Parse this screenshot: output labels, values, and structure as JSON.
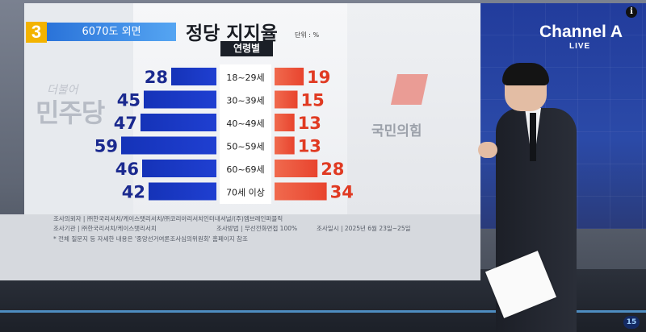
{
  "broadcast": {
    "segment_number": "3",
    "segment_label": "6070도 외면",
    "logo": "Channel A",
    "logo_sub": "LIVE",
    "info_icon": "info-icon",
    "corner_badge": "15"
  },
  "parties": {
    "left_name": "민주당",
    "left_prefix": "더불어",
    "right_name": "국민의힘",
    "left_color": "#1f3fd1",
    "right_color": "#e8442e"
  },
  "chart_data": {
    "type": "bar",
    "title": "정당 지지율",
    "unit": "단위 : %",
    "subtitle": "연령별",
    "categories": [
      "18~29세",
      "30~39세",
      "40~49세",
      "50~59세",
      "60~69세",
      "70세 이상"
    ],
    "series": [
      {
        "name": "더불어민주당",
        "values": [
          28,
          45,
          47,
          59,
          46,
          42
        ],
        "color": "#1f3fd1"
      },
      {
        "name": "국민의힘",
        "values": [
          19,
          15,
          13,
          13,
          28,
          34
        ],
        "color": "#e8442e"
      }
    ]
  },
  "source": {
    "line1": "조사의뢰자  |  ㈜한국리서치/케이스탯리서치/㈜코리아리서치인터내셔널/(주)엠브레인퍼블릭",
    "line2a": "조사기관  |  ㈜한국리서치/케이스탯리서치",
    "line2b": "조사방법  |  무선전화면접 100%",
    "line2c": "조사일시  |  2025년 6월 23일~25일",
    "line3": "* 전체 질문지 등 자세한 내용은 '중앙선거여론조사심의위원회' 홈페이지 참조"
  }
}
